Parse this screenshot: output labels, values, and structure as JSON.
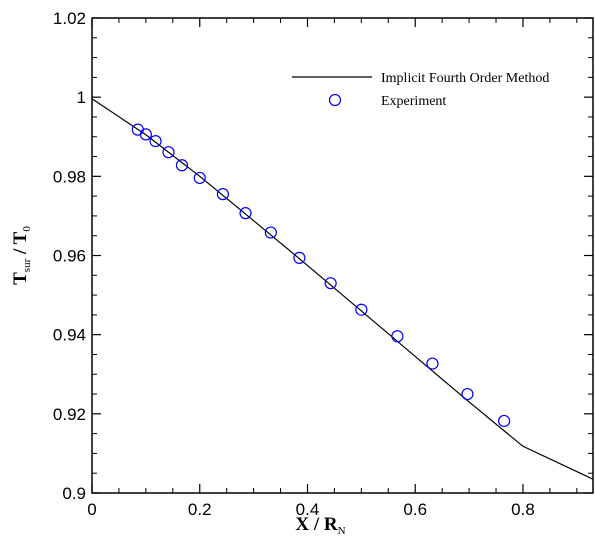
{
  "chart_data": {
    "type": "line",
    "title": "",
    "xlabel": {
      "main": "X",
      "sep": " / ",
      "symbol": "R",
      "sub": "N"
    },
    "ylabel": {
      "main": "T",
      "sub": "sur",
      "sep": " / ",
      "symbol": "T",
      "sub2": "0"
    },
    "xlim": [
      0,
      0.93
    ],
    "ylim": [
      0.9,
      1.02
    ],
    "xticks": [
      0,
      0.2,
      0.4,
      0.6,
      0.8
    ],
    "xtick_labels": [
      "0",
      "0.2",
      "0.4",
      "0.6",
      "0.8"
    ],
    "xminor_step": 0.05,
    "yticks": [
      0.9,
      0.92,
      0.94,
      0.96,
      0.98,
      1.0,
      1.02
    ],
    "ytick_labels": [
      "0.9",
      "0.92",
      "0.94",
      "0.96",
      "0.98",
      "1",
      "1.02"
    ],
    "yminor_step": 0.005,
    "grid": false,
    "legend_position": "top-right",
    "series": [
      {
        "name": "Implicit Fourth Order Method",
        "kind": "line",
        "color": "#000000",
        "x": [
          0,
          0.1,
          0.2,
          0.3,
          0.4,
          0.5,
          0.6,
          0.7,
          0.8,
          0.93
        ],
        "y": [
          0.9996,
          0.9905,
          0.98,
          0.9688,
          0.9575,
          0.946,
          0.9345,
          0.923,
          0.9118,
          0.9035
        ]
      },
      {
        "name": "Experiment",
        "kind": "scatter",
        "marker": "circle",
        "color": "#0000ff",
        "x": [
          0.085,
          0.1,
          0.118,
          0.142,
          0.167,
          0.2,
          0.243,
          0.285,
          0.332,
          0.385,
          0.443,
          0.5,
          0.567,
          0.632,
          0.697,
          0.765
        ],
        "y": [
          0.9918,
          0.9906,
          0.9889,
          0.9861,
          0.9828,
          0.9796,
          0.9755,
          0.9707,
          0.9658,
          0.9594,
          0.953,
          0.9463,
          0.9396,
          0.9327,
          0.925,
          0.9182
        ]
      }
    ]
  }
}
